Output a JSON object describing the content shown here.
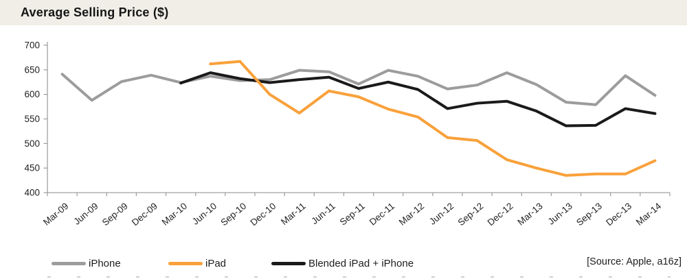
{
  "header": {
    "title": "Average Selling Price ($)"
  },
  "footer": {
    "source": "[Source: Apple, a16z]"
  },
  "chart_data": {
    "type": "line",
    "title": "Average Selling Price ($)",
    "categories": [
      "Mar-09",
      "Jun-09",
      "Sep-09",
      "Dec-09",
      "Mar-10",
      "Jun-10",
      "Sep-10",
      "Dec-10",
      "Mar-11",
      "Jun-11",
      "Sep-11",
      "Dec-11",
      "Mar-12",
      "Jun-12",
      "Sep-12",
      "Dec-12",
      "Mar-13",
      "Jun-13",
      "Sep-13",
      "Dec-13",
      "Mar-14"
    ],
    "series": [
      {
        "name": "iPhone",
        "color": "#9c9c9c",
        "z": 1,
        "values": [
          641,
          588,
          626,
          639,
          624,
          637,
          628,
          630,
          649,
          646,
          621,
          649,
          637,
          611,
          619,
          644,
          620,
          584,
          579,
          638,
          598
        ]
      },
      {
        "name": "iPad",
        "color": "#f9a13b",
        "z": 3,
        "values": [
          null,
          null,
          null,
          null,
          null,
          662,
          667,
          600,
          562,
          607,
          595,
          570,
          554,
          512,
          506,
          467,
          450,
          435,
          438,
          438,
          465
        ]
      },
      {
        "name": "Blended iPad + iPhone",
        "color": "#1a1a1a",
        "z": 2,
        "values": [
          null,
          null,
          null,
          null,
          623,
          644,
          632,
          624,
          630,
          635,
          612,
          625,
          610,
          571,
          582,
          586,
          566,
          536,
          537,
          571,
          561
        ]
      }
    ],
    "xlabel": "",
    "ylabel": "",
    "ylim": [
      400,
      700
    ],
    "ytick_step": 50,
    "grid": false,
    "legend_position": "bottom",
    "axis_color": "#a0a0a0",
    "label_color": "#1f1f1f"
  }
}
